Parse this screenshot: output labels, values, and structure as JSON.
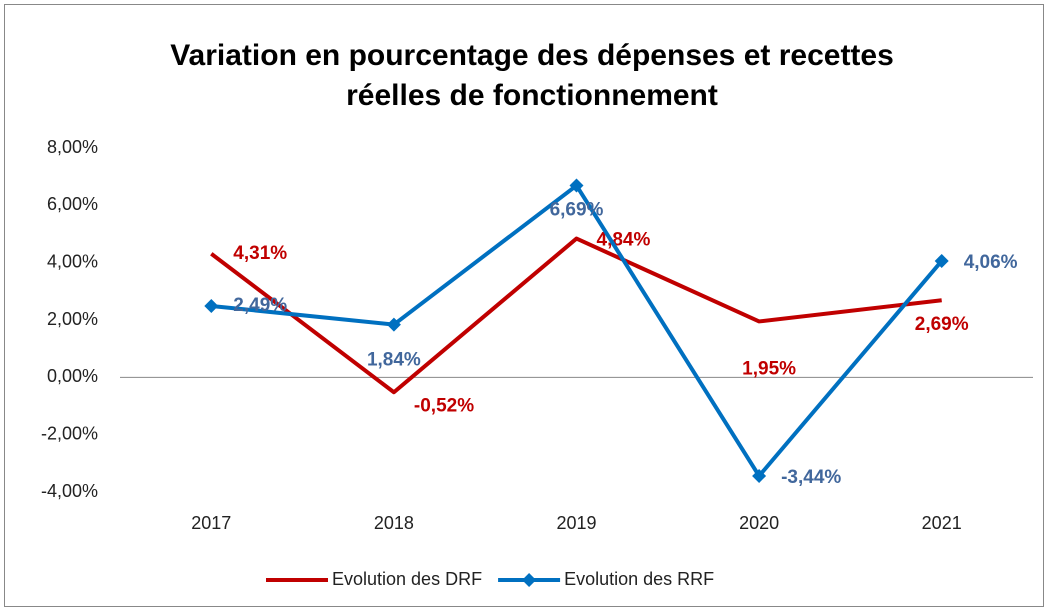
{
  "chart_data": {
    "type": "line",
    "title": [
      "Variation en pourcentage des dépenses et recettes",
      "réelles de fonctionnement"
    ],
    "categories": [
      "2017",
      "2018",
      "2019",
      "2020",
      "2021"
    ],
    "series": [
      {
        "name": "Evolution des DRF",
        "color": "#c00000",
        "marker": "none",
        "values": [
          4.31,
          -0.52,
          4.84,
          1.95,
          2.69
        ],
        "value_labels": [
          "4,31%",
          "-0,52%",
          "4,84%",
          "1,95%",
          "2,69%"
        ]
      },
      {
        "name": "Evolution des RRF",
        "color": "#0070c0",
        "marker": "diamond",
        "values": [
          2.49,
          1.84,
          6.69,
          -3.44,
          4.06
        ],
        "value_labels": [
          "2,49%",
          "1,84%",
          "6,69%",
          "-3,44%",
          "4,06%"
        ]
      }
    ],
    "ylim": [
      -4,
      8
    ],
    "yticks": [
      {
        "value": 8,
        "label": "8,00%"
      },
      {
        "value": 6,
        "label": "6,00%"
      },
      {
        "value": 4,
        "label": "4,00%"
      },
      {
        "value": 2,
        "label": "2,00%"
      },
      {
        "value": 0,
        "label": "0,00%"
      },
      {
        "value": -2,
        "label": "-2,00%"
      },
      {
        "value": -4,
        "label": "-4,00%"
      }
    ],
    "legend": "bottom"
  }
}
